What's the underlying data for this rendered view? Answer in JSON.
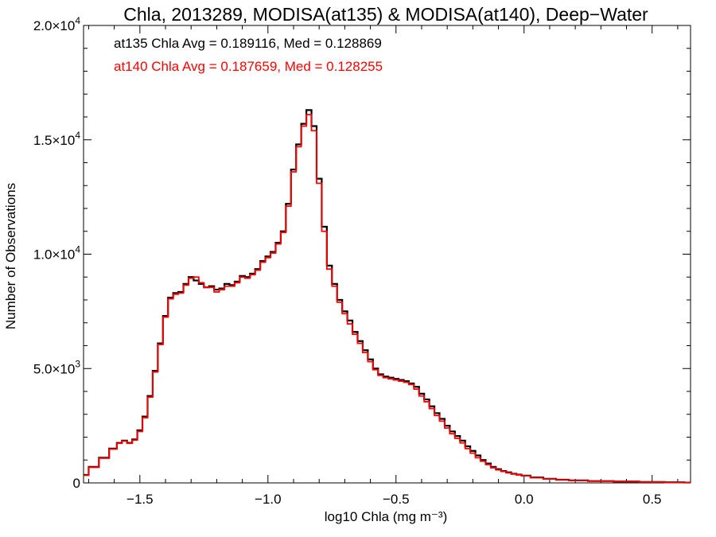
{
  "chart_data": {
    "type": "line",
    "title": "Chla, 2013289, MODISA(at135) & MODISA(at140), Deep−Water",
    "xlabel": "log10 Chla (mg m⁻³)",
    "ylabel": "Number of Observations",
    "xlim": [
      -1.72,
      0.65
    ],
    "ylim": [
      0,
      20000
    ],
    "x_ticks": [
      -1.5,
      -1.0,
      -0.5,
      0.0,
      0.5
    ],
    "x_tick_labels": [
      "−1.5",
      "−1.0",
      "−0.5",
      "0.0",
      "0.5"
    ],
    "y_ticks": [
      0,
      5000,
      10000,
      15000,
      20000
    ],
    "y_tick_labels": [
      {
        "mant": "0",
        "exp": ""
      },
      {
        "mant": "5.0×10",
        "exp": "3"
      },
      {
        "mant": "1.0×10",
        "exp": "4"
      },
      {
        "mant": "1.5×10",
        "exp": "4"
      },
      {
        "mant": "2.0×10",
        "exp": "4"
      }
    ],
    "annotations": [
      {
        "text": "at135 Chla Avg = 0.189116, Med = 0.128869",
        "color": "#000000"
      },
      {
        "text": "at140 Chla Avg = 0.187659, Med = 0.128255",
        "color": "#ff0000"
      }
    ],
    "series": [
      {
        "color": "#000000",
        "x": [
          -1.72,
          -1.68,
          -1.64,
          -1.6,
          -1.58,
          -1.56,
          -1.54,
          -1.52,
          -1.5,
          -1.48,
          -1.46,
          -1.44,
          -1.42,
          -1.4,
          -1.38,
          -1.36,
          -1.34,
          -1.32,
          -1.3,
          -1.28,
          -1.26,
          -1.24,
          -1.22,
          -1.2,
          -1.18,
          -1.16,
          -1.14,
          -1.12,
          -1.1,
          -1.08,
          -1.06,
          -1.04,
          -1.02,
          -1.0,
          -0.98,
          -0.96,
          -0.94,
          -0.92,
          -0.9,
          -0.88,
          -0.86,
          -0.84,
          -0.82,
          -0.8,
          -0.78,
          -0.76,
          -0.74,
          -0.72,
          -0.7,
          -0.68,
          -0.66,
          -0.64,
          -0.62,
          -0.6,
          -0.58,
          -0.56,
          -0.54,
          -0.52,
          -0.5,
          -0.48,
          -0.46,
          -0.44,
          -0.42,
          -0.4,
          -0.38,
          -0.36,
          -0.34,
          -0.32,
          -0.3,
          -0.28,
          -0.26,
          -0.24,
          -0.22,
          -0.2,
          -0.18,
          -0.16,
          -0.14,
          -0.12,
          -0.1,
          -0.08,
          -0.06,
          -0.04,
          -0.02,
          0.0,
          0.05,
          0.1,
          0.15,
          0.2,
          0.3,
          0.4,
          0.5,
          0.6,
          0.65
        ],
        "y": [
          350,
          700,
          1100,
          1500,
          1750,
          1850,
          1750,
          1900,
          2300,
          2900,
          3800,
          4900,
          6100,
          7300,
          8100,
          8300,
          8350,
          8700,
          9000,
          8850,
          8700,
          8550,
          8600,
          8450,
          8500,
          8700,
          8650,
          8800,
          9050,
          9000,
          9150,
          9350,
          9700,
          9900,
          10100,
          10500,
          11000,
          12200,
          13700,
          14800,
          15700,
          16300,
          15600,
          13300,
          11200,
          9500,
          8700,
          8000,
          7500,
          7100,
          6600,
          6200,
          5800,
          5400,
          5000,
          4750,
          4650,
          4600,
          4550,
          4500,
          4450,
          4350,
          4200,
          3900,
          3650,
          3350,
          3050,
          2800,
          2500,
          2250,
          2050,
          1850,
          1600,
          1400,
          1200,
          1000,
          850,
          700,
          600,
          520,
          460,
          400,
          360,
          320,
          240,
          180,
          140,
          110,
          80,
          60,
          40,
          25,
          15
        ]
      },
      {
        "color": "#ff0000",
        "x": [
          -1.72,
          -1.68,
          -1.64,
          -1.6,
          -1.58,
          -1.56,
          -1.54,
          -1.52,
          -1.5,
          -1.48,
          -1.46,
          -1.44,
          -1.42,
          -1.4,
          -1.38,
          -1.36,
          -1.34,
          -1.32,
          -1.3,
          -1.28,
          -1.26,
          -1.24,
          -1.22,
          -1.2,
          -1.18,
          -1.16,
          -1.14,
          -1.12,
          -1.1,
          -1.08,
          -1.06,
          -1.04,
          -1.02,
          -1.0,
          -0.98,
          -0.96,
          -0.94,
          -0.92,
          -0.9,
          -0.88,
          -0.86,
          -0.84,
          -0.82,
          -0.8,
          -0.78,
          -0.76,
          -0.74,
          -0.72,
          -0.7,
          -0.68,
          -0.66,
          -0.64,
          -0.62,
          -0.6,
          -0.58,
          -0.56,
          -0.54,
          -0.52,
          -0.5,
          -0.48,
          -0.46,
          -0.44,
          -0.42,
          -0.4,
          -0.38,
          -0.36,
          -0.34,
          -0.32,
          -0.3,
          -0.28,
          -0.26,
          -0.24,
          -0.22,
          -0.2,
          -0.18,
          -0.16,
          -0.14,
          -0.12,
          -0.1,
          -0.08,
          -0.06,
          -0.04,
          -0.02,
          0.0,
          0.05,
          0.1,
          0.15,
          0.2,
          0.3,
          0.4,
          0.5,
          0.6,
          0.65
        ],
        "y": [
          330,
          680,
          1080,
          1480,
          1730,
          1830,
          1730,
          1870,
          2250,
          2850,
          3750,
          4850,
          6050,
          7250,
          8050,
          8250,
          8300,
          8650,
          8950,
          9000,
          8750,
          8550,
          8550,
          8350,
          8450,
          8600,
          8600,
          8750,
          9000,
          8950,
          9100,
          9300,
          9650,
          9850,
          10050,
          10450,
          10950,
          12100,
          13600,
          14700,
          15600,
          16100,
          15400,
          13100,
          11000,
          9350,
          8600,
          7900,
          7400,
          6950,
          6500,
          6100,
          5700,
          5300,
          4950,
          4700,
          4600,
          4550,
          4500,
          4450,
          4400,
          4300,
          4100,
          3800,
          3550,
          3250,
          2950,
          2700,
          2400,
          2150,
          1950,
          1750,
          1500,
          1300,
          1100,
          950,
          800,
          660,
          570,
          500,
          440,
          390,
          350,
          310,
          230,
          170,
          130,
          100,
          75,
          55,
          35,
          20,
          12
        ]
      }
    ]
  }
}
